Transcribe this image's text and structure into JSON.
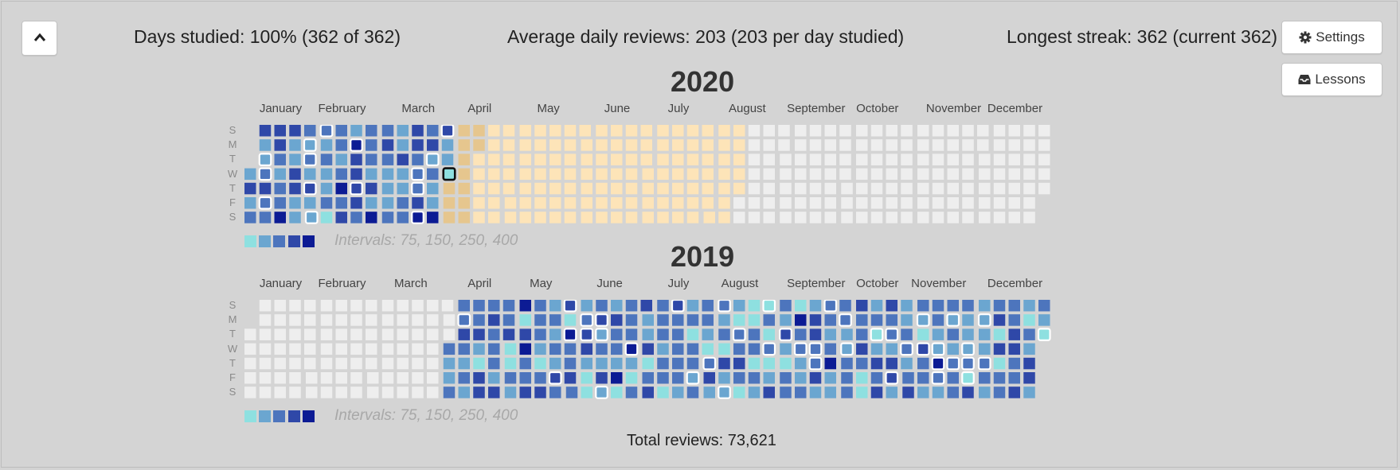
{
  "toolbar": {
    "collapse_icon": "chevron-up-icon",
    "settings_icon": "gear-icon",
    "settings_label": "Settings",
    "lessons_icon": "inbox-icon",
    "lessons_label": "Lessons"
  },
  "stats": {
    "days_studied": "Days studied: 100% (362 of 362)",
    "average_daily": "Average daily reviews: 203 (203 per day studied)",
    "longest_streak": "Longest streak: 362 (current 362)"
  },
  "day_labels": [
    "S",
    "M",
    "T",
    "W",
    "T",
    "F",
    "S"
  ],
  "months": [
    "January",
    "February",
    "March",
    "April",
    "May",
    "June",
    "July",
    "August",
    "September",
    "October",
    "November",
    "December"
  ],
  "colors": {
    "empty": "#eeeeee",
    "future": "#fde4b8",
    "scale": [
      "#8ee0e0",
      "#6ba6d0",
      "#4d75bd",
      "#2f48a8",
      "#0c1b94"
    ],
    "highlight_border": "#ffffff",
    "today_border": "#111111"
  },
  "legend_colors": [
    "#8ee0e0",
    "#6ba6d0",
    "#4d75bd",
    "#2f48a8",
    "#0c1b94"
  ],
  "intervals_text": "Intervals: 75, 150, 250, 400",
  "years": [
    {
      "year": "2020",
      "first_weekday": 3,
      "days_in_year": 366,
      "studied_through_day_of_year": 92
    },
    {
      "year": "2019",
      "first_weekday": 2,
      "days_in_year": 365,
      "studied_from_day_of_year": 93
    }
  ],
  "total_reviews": "Total reviews: 73,621"
}
